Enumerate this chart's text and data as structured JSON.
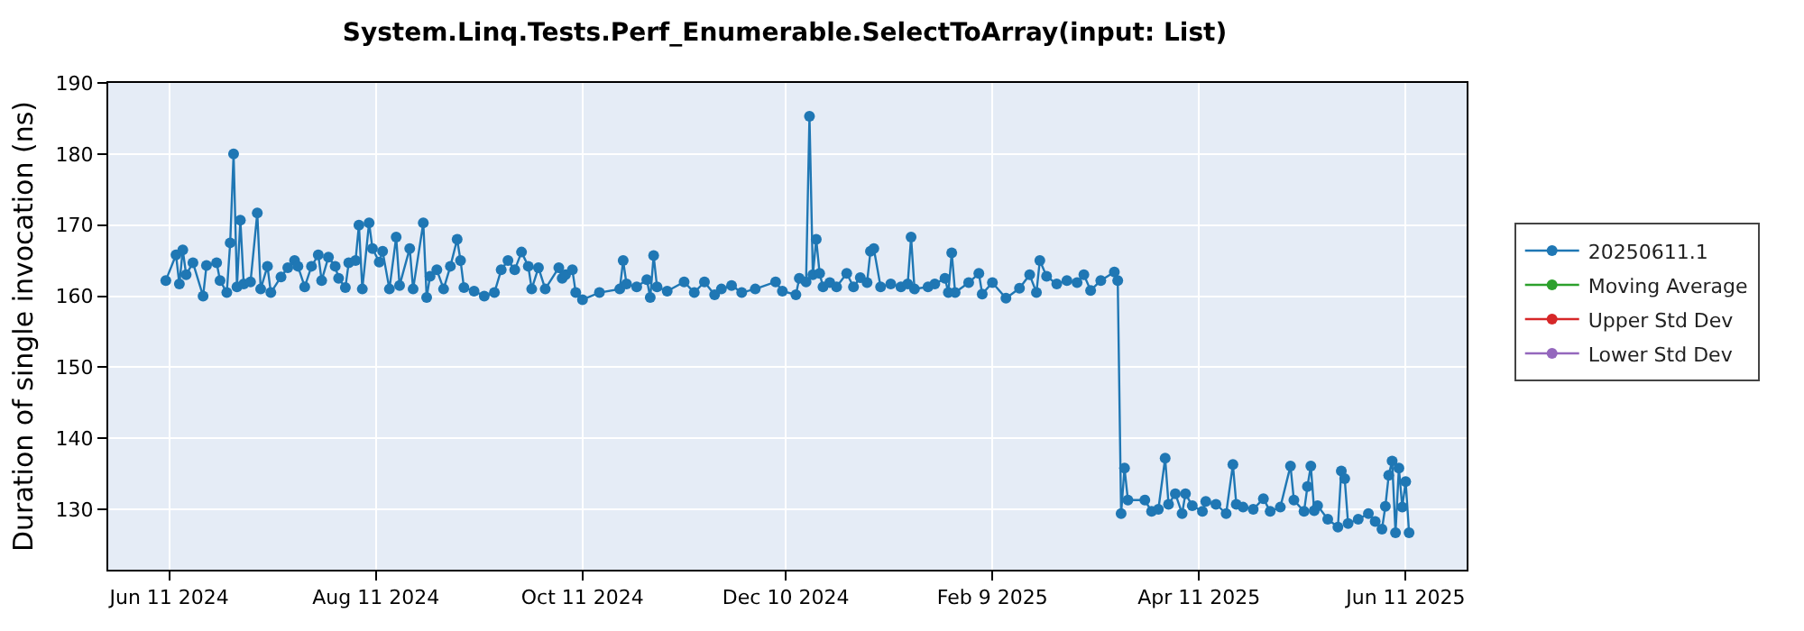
{
  "chart_data": {
    "type": "line",
    "title": "System.Linq.Tests.Perf_Enumerable.SelectToArray(input: List)",
    "ylabel": "Duration of single invocation (ns)",
    "x": [
      "2024-06-10",
      "2024-06-13",
      "2024-06-14",
      "2024-06-15",
      "2024-06-16",
      "2024-06-18",
      "2024-06-21",
      "2024-06-22",
      "2024-06-25",
      "2024-06-26",
      "2024-06-28",
      "2024-06-29",
      "2024-06-30",
      "2024-07-01",
      "2024-07-02",
      "2024-07-03",
      "2024-07-05",
      "2024-07-07",
      "2024-07-08",
      "2024-07-10",
      "2024-07-11",
      "2024-07-14",
      "2024-07-16",
      "2024-07-18",
      "2024-07-19",
      "2024-07-21",
      "2024-07-23",
      "2024-07-25",
      "2024-07-26",
      "2024-07-28",
      "2024-07-30",
      "2024-07-31",
      "2024-08-02",
      "2024-08-03",
      "2024-08-05",
      "2024-08-06",
      "2024-08-07",
      "2024-08-09",
      "2024-08-10",
      "2024-08-12",
      "2024-08-13",
      "2024-08-15",
      "2024-08-17",
      "2024-08-18",
      "2024-08-21",
      "2024-08-22",
      "2024-08-25",
      "2024-08-26",
      "2024-08-27",
      "2024-08-29",
      "2024-08-31",
      "2024-09-02",
      "2024-09-04",
      "2024-09-05",
      "2024-09-06",
      "2024-09-09",
      "2024-09-12",
      "2024-09-15",
      "2024-09-17",
      "2024-09-19",
      "2024-09-21",
      "2024-09-23",
      "2024-09-25",
      "2024-09-26",
      "2024-09-28",
      "2024-09-30",
      "2024-10-04",
      "2024-10-05",
      "2024-10-06",
      "2024-10-08",
      "2024-10-09",
      "2024-10-11",
      "2024-10-16",
      "2024-10-22",
      "2024-10-23",
      "2024-10-24",
      "2024-10-27",
      "2024-10-30",
      "2024-10-31",
      "2024-11-01",
      "2024-11-02",
      "2024-11-05",
      "2024-11-10",
      "2024-11-13",
      "2024-11-16",
      "2024-11-19",
      "2024-11-21",
      "2024-11-24",
      "2024-11-27",
      "2024-12-01",
      "2024-12-07",
      "2024-12-09",
      "2024-12-13",
      "2024-12-14",
      "2024-12-16",
      "2024-12-17",
      "2024-12-18",
      "2024-12-19",
      "2024-12-20",
      "2024-12-21",
      "2024-12-23",
      "2024-12-25",
      "2024-12-28",
      "2024-12-30",
      "2025-01-01",
      "2025-01-03",
      "2025-01-04",
      "2025-01-05",
      "2025-01-07",
      "2025-01-10",
      "2025-01-13",
      "2025-01-15",
      "2025-01-16",
      "2025-01-17",
      "2025-01-21",
      "2025-01-23",
      "2025-01-26",
      "2025-01-27",
      "2025-01-28",
      "2025-01-29",
      "2025-02-02",
      "2025-02-05",
      "2025-02-06",
      "2025-02-09",
      "2025-02-13",
      "2025-02-17",
      "2025-02-20",
      "2025-02-22",
      "2025-02-23",
      "2025-02-25",
      "2025-02-28",
      "2025-03-03",
      "2025-03-06",
      "2025-03-08",
      "2025-03-10",
      "2025-03-13",
      "2025-03-17",
      "2025-03-18",
      "2025-03-19",
      "2025-03-20",
      "2025-03-21",
      "2025-03-26",
      "2025-03-28",
      "2025-03-30",
      "2025-04-01",
      "2025-04-02",
      "2025-04-04",
      "2025-04-06",
      "2025-04-07",
      "2025-04-09",
      "2025-04-12",
      "2025-04-13",
      "2025-04-16",
      "2025-04-19",
      "2025-04-21",
      "2025-04-22",
      "2025-04-24",
      "2025-04-27",
      "2025-04-30",
      "2025-05-02",
      "2025-05-05",
      "2025-05-08",
      "2025-05-09",
      "2025-05-12",
      "2025-05-13",
      "2025-05-14",
      "2025-05-15",
      "2025-05-16",
      "2025-05-19",
      "2025-05-22",
      "2025-05-23",
      "2025-05-24",
      "2025-05-25",
      "2025-05-28",
      "2025-05-31",
      "2025-06-02",
      "2025-06-04",
      "2025-06-05",
      "2025-06-06",
      "2025-06-07",
      "2025-06-08",
      "2025-06-09",
      "2025-06-10",
      "2025-06-11",
      "2025-06-12"
    ],
    "series": [
      {
        "name": "20250611.1",
        "color": "#1f77b4",
        "values": [
          162.2,
          165.8,
          161.7,
          166.5,
          163.0,
          164.7,
          160.0,
          164.3,
          164.7,
          162.2,
          160.5,
          167.5,
          180.0,
          161.3,
          170.7,
          161.7,
          162.0,
          171.7,
          161.0,
          164.2,
          160.5,
          162.7,
          164.0,
          165.0,
          164.2,
          161.3,
          164.2,
          165.8,
          162.2,
          165.5,
          164.2,
          162.5,
          161.2,
          164.7,
          165.0,
          170.0,
          161.0,
          170.3,
          166.7,
          164.8,
          166.3,
          161.0,
          168.3,
          161.5,
          166.7,
          161.0,
          170.3,
          159.8,
          162.8,
          163.7,
          161.0,
          164.2,
          168.0,
          165.0,
          161.2,
          160.7,
          160.0,
          160.5,
          163.7,
          165.0,
          163.7,
          166.2,
          164.2,
          161.0,
          164.0,
          161.0,
          164.0,
          162.5,
          163.0,
          163.7,
          160.5,
          159.5,
          160.5,
          161.0,
          165.0,
          161.7,
          161.3,
          162.3,
          159.8,
          165.7,
          161.3,
          160.7,
          162.0,
          160.5,
          162.0,
          160.2,
          161.0,
          161.5,
          160.5,
          161.0,
          162.0,
          160.7,
          160.2,
          162.5,
          162.0,
          185.3,
          163.0,
          168.0,
          163.2,
          161.3,
          161.9,
          161.3,
          163.2,
          161.3,
          162.6,
          161.9,
          166.3,
          166.7,
          161.3,
          161.7,
          161.3,
          161.7,
          168.3,
          161.0,
          161.3,
          161.7,
          162.5,
          160.5,
          166.1,
          160.5,
          161.9,
          163.2,
          160.3,
          161.9,
          159.7,
          161.1,
          163.0,
          160.5,
          165.0,
          162.8,
          161.7,
          162.2,
          161.9,
          163.0,
          160.8,
          162.2,
          163.4,
          162.2,
          129.4,
          135.8,
          131.3,
          131.3,
          129.7,
          130.0,
          137.2,
          130.7,
          132.2,
          129.4,
          132.2,
          130.5,
          129.7,
          131.1,
          130.7,
          129.4,
          136.3,
          130.7,
          130.3,
          130.0,
          131.5,
          129.7,
          130.3,
          136.1,
          131.3,
          129.7,
          133.2,
          136.1,
          129.8,
          130.5,
          128.6,
          127.5,
          135.4,
          134.3,
          128.0,
          128.6,
          129.4,
          128.3,
          127.2,
          130.4,
          134.8,
          136.8,
          126.7,
          135.8,
          130.3,
          133.9,
          126.7
        ]
      },
      {
        "name": "Moving Average",
        "color": "#2ca02c",
        "values": [
          null,
          null,
          null,
          null,
          null,
          null,
          null,
          null,
          null,
          null,
          null,
          null,
          null,
          null,
          null,
          null,
          null,
          null,
          null,
          null,
          null,
          null,
          null,
          null,
          null,
          null,
          null,
          null,
          null,
          null,
          null,
          null,
          null,
          null,
          null,
          null,
          null,
          null,
          null,
          null,
          null,
          null,
          null,
          null,
          null,
          null,
          null,
          null,
          null,
          null,
          null,
          null,
          null,
          null,
          null,
          null,
          null,
          null,
          null,
          null,
          null,
          null,
          null,
          null,
          null,
          null,
          null,
          null,
          null,
          null,
          null,
          null,
          null,
          null,
          null,
          null,
          null,
          null,
          null,
          null,
          null,
          null,
          null,
          null,
          null,
          null,
          null,
          null,
          null,
          null,
          null,
          null,
          null,
          null,
          null,
          null,
          null,
          null,
          null,
          null,
          null,
          null,
          null,
          null,
          null,
          null,
          null,
          null,
          null,
          null,
          null,
          null,
          null,
          null,
          null,
          null,
          null,
          null,
          null,
          null,
          null,
          null,
          null,
          null,
          null,
          null,
          null,
          null,
          null,
          null,
          null,
          null,
          null,
          null,
          null,
          null,
          null,
          null,
          null,
          null,
          null,
          null,
          null,
          null,
          null,
          null,
          null,
          null,
          null,
          null,
          null,
          null,
          null,
          null,
          null,
          null,
          null,
          null,
          null,
          null,
          null,
          null,
          null,
          null,
          null,
          null,
          null,
          null,
          null,
          null,
          null,
          null,
          null,
          null,
          null,
          null,
          null,
          null,
          null,
          null,
          null,
          null,
          null,
          null,
          null
        ]
      },
      {
        "name": "Upper Std Dev",
        "color": "#d62728",
        "values": [
          null,
          null,
          null,
          null,
          null,
          null,
          null,
          null,
          null,
          null,
          null,
          null,
          null,
          null,
          null,
          null,
          null,
          null,
          null,
          null,
          null,
          null,
          null,
          null,
          null,
          null,
          null,
          null,
          null,
          null,
          null,
          null,
          null,
          null,
          null,
          null,
          null,
          null,
          null,
          null,
          null,
          null,
          null,
          null,
          null,
          null,
          null,
          null,
          null,
          null,
          null,
          null,
          null,
          null,
          null,
          null,
          null,
          null,
          null,
          null,
          null,
          null,
          null,
          null,
          null,
          null,
          null,
          null,
          null,
          null,
          null,
          null,
          null,
          null,
          null,
          null,
          null,
          null,
          null,
          null,
          null,
          null,
          null,
          null,
          null,
          null,
          null,
          null,
          null,
          null,
          null,
          null,
          null,
          null,
          null,
          null,
          null,
          null,
          null,
          null,
          null,
          null,
          null,
          null,
          null,
          null,
          null,
          null,
          null,
          null,
          null,
          null,
          null,
          null,
          null,
          null,
          null,
          null,
          null,
          null,
          null,
          null,
          null,
          null,
          null,
          null,
          null,
          null,
          null,
          null,
          null,
          null,
          null,
          null,
          null,
          null,
          null,
          null,
          null,
          null,
          null,
          null,
          null,
          null,
          null,
          null,
          null,
          null,
          null,
          null,
          null,
          null,
          null,
          null,
          null,
          null,
          null,
          null,
          null,
          null,
          null,
          null,
          null,
          null,
          null,
          null,
          null,
          null,
          null,
          null,
          null,
          null,
          null,
          null,
          null,
          null,
          null,
          null,
          null,
          null,
          null,
          null,
          null,
          null,
          null
        ]
      },
      {
        "name": "Lower Std Dev",
        "color": "#9467bd",
        "values": [
          null,
          null,
          null,
          null,
          null,
          null,
          null,
          null,
          null,
          null,
          null,
          null,
          null,
          null,
          null,
          null,
          null,
          null,
          null,
          null,
          null,
          null,
          null,
          null,
          null,
          null,
          null,
          null,
          null,
          null,
          null,
          null,
          null,
          null,
          null,
          null,
          null,
          null,
          null,
          null,
          null,
          null,
          null,
          null,
          null,
          null,
          null,
          null,
          null,
          null,
          null,
          null,
          null,
          null,
          null,
          null,
          null,
          null,
          null,
          null,
          null,
          null,
          null,
          null,
          null,
          null,
          null,
          null,
          null,
          null,
          null,
          null,
          null,
          null,
          null,
          null,
          null,
          null,
          null,
          null,
          null,
          null,
          null,
          null,
          null,
          null,
          null,
          null,
          null,
          null,
          null,
          null,
          null,
          null,
          null,
          null,
          null,
          null,
          null,
          null,
          null,
          null,
          null,
          null,
          null,
          null,
          null,
          null,
          null,
          null,
          null,
          null,
          null,
          null,
          null,
          null,
          null,
          null,
          null,
          null,
          null,
          null,
          null,
          null,
          null,
          null,
          null,
          null,
          null,
          null,
          null,
          null,
          null,
          null,
          null,
          null,
          null,
          null,
          null,
          null,
          null,
          null,
          null,
          null,
          null,
          null,
          null,
          null,
          null,
          null,
          null,
          null,
          null,
          null,
          null,
          null,
          null,
          null,
          null,
          null,
          null,
          null,
          null,
          null,
          null,
          null,
          null,
          null,
          null,
          null,
          null,
          null,
          null,
          null,
          null,
          null,
          null,
          null,
          null,
          null,
          null,
          null,
          null,
          null,
          null
        ]
      }
    ],
    "xlim": [
      "2024-05-24",
      "2025-06-29"
    ],
    "xticks": [
      {
        "value": "2024-06-11",
        "label": "Jun 11 2024"
      },
      {
        "value": "2024-08-11",
        "label": "Aug 11 2024"
      },
      {
        "value": "2024-10-11",
        "label": "Oct 11 2024"
      },
      {
        "value": "2024-12-10",
        "label": "Dec 10 2024"
      },
      {
        "value": "2025-02-09",
        "label": "Feb 9 2025"
      },
      {
        "value": "2025-04-11",
        "label": "Apr 11 2025"
      },
      {
        "value": "2025-06-11",
        "label": "Jun 11 2025"
      }
    ],
    "ylim": [
      121.5,
      190
    ],
    "yticks": [
      130,
      140,
      150,
      160,
      170,
      180,
      190
    ],
    "grid": true,
    "legend": "right",
    "marker": "circle",
    "line_style": "solid"
  }
}
